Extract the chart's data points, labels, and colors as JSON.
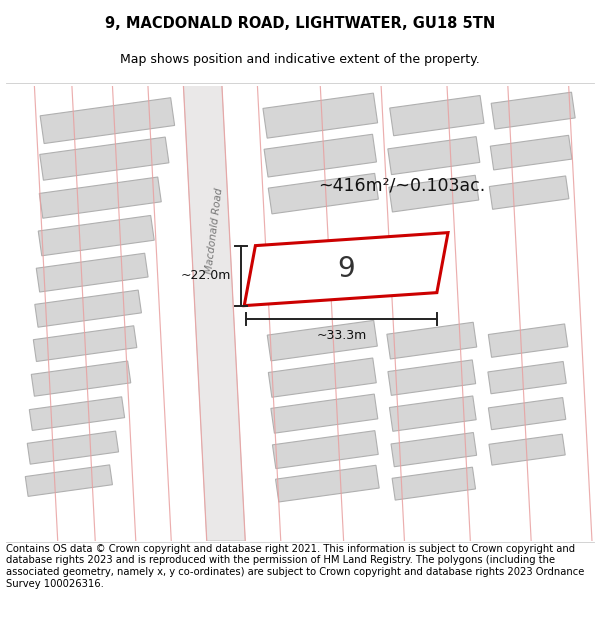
{
  "title": "9, MACDONALD ROAD, LIGHTWATER, GU18 5TN",
  "subtitle": "Map shows position and indicative extent of the property.",
  "footer": "Contains OS data © Crown copyright and database right 2021. This information is subject to Crown copyright and database rights 2023 and is reproduced with the permission of HM Land Registry. The polygons (including the associated geometry, namely x, y co-ordinates) are subject to Crown copyright and database rights 2023 Ordnance Survey 100026316.",
  "area_label": "~416m²/~0.103ac.",
  "width_label": "~33.3m",
  "height_label": "~22.0m",
  "plot_number": "9",
  "road_label": "Macdonald Road",
  "bg_color": "#ffffff",
  "building_fill": "#d6d6d6",
  "building_edge": "#b0b0b0",
  "highlight_edge": "#cc0000",
  "highlight_fill": "#ffffff",
  "pink_line": "#e8a0a0",
  "road_fill": "#eae8e8",
  "dim_line": "#222222",
  "title_fontsize": 10.5,
  "subtitle_fontsize": 9,
  "footer_fontsize": 7.2,
  "map_bg": "#f7f5f3"
}
